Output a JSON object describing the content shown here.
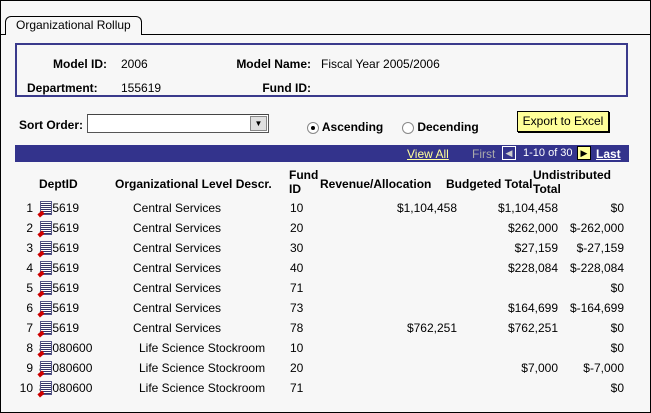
{
  "tab": "Organizational Rollup",
  "header": {
    "model_id_label": "Model ID:",
    "model_id": "2006",
    "model_name_label": "Model Name:",
    "model_name": "Fiscal Year 2005/2006",
    "department_label": "Department:",
    "department": "155619",
    "fund_id_label": "Fund ID:",
    "fund_id": ""
  },
  "sort": {
    "label": "Sort Order:",
    "value": "",
    "ascending": "Ascending",
    "descending": "Decending",
    "selected": "ascending"
  },
  "export_label": "Export to Excel",
  "nav": {
    "view_all": "View All",
    "first": "First",
    "range": "1-10 of 30",
    "last": "Last"
  },
  "columns": [
    "DeptID",
    "Organizational Level Descr.",
    "Fund ID",
    "Revenue/Allocation",
    "Budgeted Total",
    "Undistributed Total"
  ],
  "rows": [
    {
      "n": "1",
      "dept": "155619",
      "descr": "Central Services",
      "fund": "10",
      "rev": "$1,104,458",
      "budget": "$1,104,458",
      "undist": "$0"
    },
    {
      "n": "2",
      "dept": "155619",
      "descr": "Central Services",
      "fund": "20",
      "rev": "",
      "budget": "$262,000",
      "undist": "$-262,000"
    },
    {
      "n": "3",
      "dept": "155619",
      "descr": "Central Services",
      "fund": "30",
      "rev": "",
      "budget": "$27,159",
      "undist": "$-27,159"
    },
    {
      "n": "4",
      "dept": "155619",
      "descr": "Central Services",
      "fund": "40",
      "rev": "",
      "budget": "$228,084",
      "undist": "$-228,084"
    },
    {
      "n": "5",
      "dept": "155619",
      "descr": "Central Services",
      "fund": "71",
      "rev": "",
      "budget": "",
      "undist": "$0"
    },
    {
      "n": "6",
      "dept": "155619",
      "descr": "Central Services",
      "fund": "73",
      "rev": "",
      "budget": "$164,699",
      "undist": "$-164,699"
    },
    {
      "n": "7",
      "dept": "155619",
      "descr": "Central Services",
      "fund": "78",
      "rev": "$762,251",
      "budget": "$762,251",
      "undist": "$0"
    },
    {
      "n": "8",
      "dept": "84080600",
      "descr": "Life Science Stockroom",
      "fund": "10",
      "rev": "",
      "budget": "",
      "undist": "$0"
    },
    {
      "n": "9",
      "dept": "84080600",
      "descr": "Life Science Stockroom",
      "fund": "20",
      "rev": "",
      "budget": "$7,000",
      "undist": "$-7,000"
    },
    {
      "n": "10",
      "dept": "84080600",
      "descr": "Life Science Stockroom",
      "fund": "71",
      "rev": "",
      "budget": "",
      "undist": "$0"
    }
  ]
}
